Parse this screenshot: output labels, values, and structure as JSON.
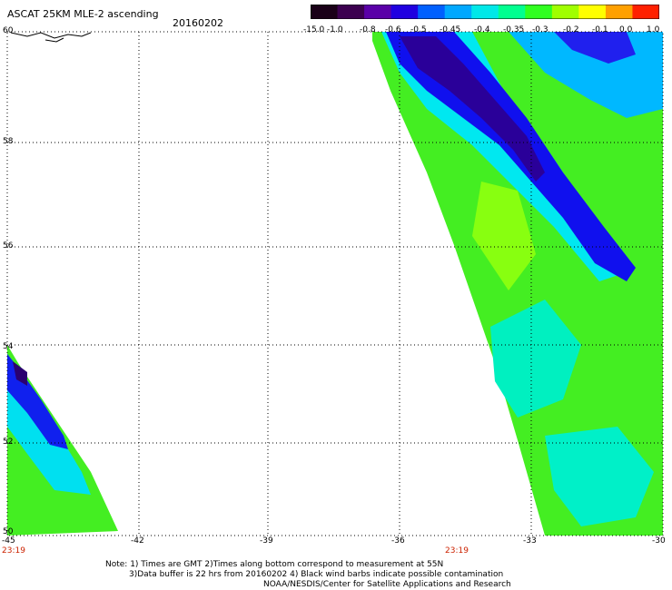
{
  "header": {
    "title": "ASCAT 25KM MLE-2 ascending",
    "date": "20160202"
  },
  "colorbar": {
    "labels": [
      "-15.0",
      "-1.0",
      "-0.8",
      "-0.6",
      "-0.5",
      "-0.45",
      "-0.4",
      "-0.35",
      "-0.3",
      "-0.2",
      "-0.1",
      "0.0",
      "1.0"
    ],
    "colors": [
      "#1a0018",
      "#3c0050",
      "#5a00a8",
      "#2000e0",
      "#0060ff",
      "#00a8ff",
      "#00e8e8",
      "#00ff90",
      "#30ff20",
      "#a0ff00",
      "#ffff00",
      "#ffa000",
      "#ff2000"
    ]
  },
  "axes": {
    "lon_labels": [
      "-45",
      "-42",
      "-39",
      "-36",
      "-33",
      "-30"
    ],
    "lat_labels": [
      "60",
      "58",
      "56",
      "54",
      "52",
      "50"
    ],
    "time_labels": [
      "23:19",
      "23:19"
    ]
  },
  "footer": {
    "line1": "Note: 1) Times are GMT 2)Times along bottom correspond to measurement at 55N",
    "line2": "3)Data buffer is 22 hrs from 20160202 4) Black wind barbs indicate possible contamination",
    "line3": "NOAA/NESDIS/Center for Satellite Applications and Research"
  }
}
